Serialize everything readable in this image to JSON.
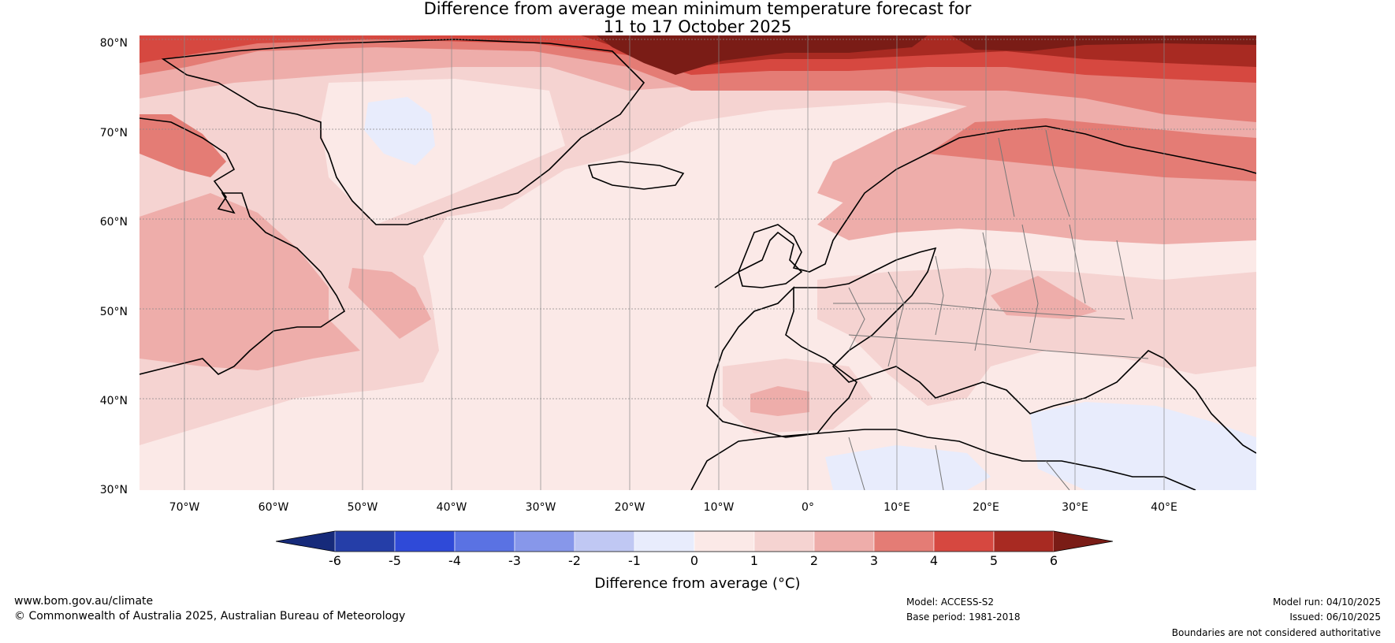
{
  "title": {
    "line1": "Difference from average mean minimum temperature forecast for",
    "line2": "11 to 17 October 2025"
  },
  "map": {
    "region": "North Atlantic and Europe",
    "latitude_labels": [
      "80°N",
      "70°N",
      "60°N",
      "50°N",
      "40°N",
      "30°N"
    ],
    "longitude_labels": [
      "70°W",
      "60°W",
      "50°W",
      "40°W",
      "30°W",
      "20°W",
      "10°W",
      "0°",
      "10°E",
      "20°E",
      "30°E",
      "40°E"
    ],
    "colors": {
      "ocean_base": "#fbe9e7",
      "land_outline": "#000000",
      "borders": "#777777",
      "gridlines": "#888888"
    }
  },
  "colorbar": {
    "ticks": [
      "-6",
      "-5",
      "-4",
      "-3",
      "-2",
      "-1",
      "0",
      "1",
      "2",
      "3",
      "4",
      "5",
      "6"
    ],
    "colors": [
      "#162a7a",
      "#253ea8",
      "#2f4ad8",
      "#5a72e3",
      "#8797ea",
      "#c0c8f3",
      "#e8ecfc",
      "#fbe9e7",
      "#f5d3d1",
      "#eeadaa",
      "#e47c75",
      "#d64840",
      "#a82a22",
      "#7a1c16"
    ],
    "label": "Difference from average (°C)"
  },
  "footer": {
    "website": "www.bom.gov.au/climate",
    "copyright": "© Commonwealth of Australia 2025, Australian Bureau of Meteorology",
    "model": "Model: ACCESS-S2",
    "base_period": "Base period: 1981-2018",
    "model_run": "Model run: 04/10/2025",
    "issued": "Issued: 06/10/2025",
    "disclaimer": "Boundaries are not considered authoritative"
  }
}
